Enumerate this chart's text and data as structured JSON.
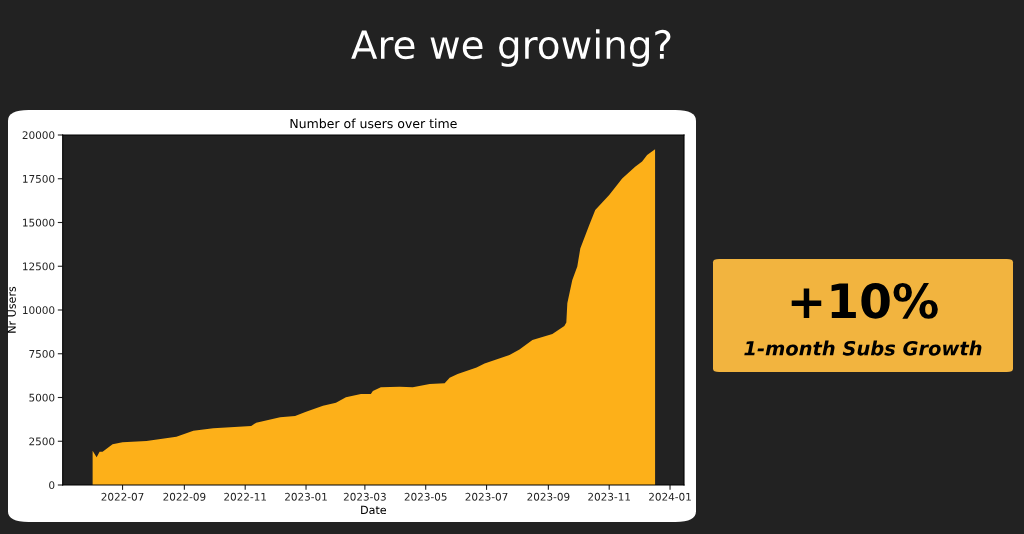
{
  "chart_data": {
    "type": "area",
    "title": "Are we growing?",
    "subtitle": "Number of users over time",
    "xlabel": "Date",
    "ylabel": "Nr Users",
    "x": [
      "2022-06-01",
      "2022-06-05",
      "2022-06-08",
      "2022-06-11",
      "2022-06-21",
      "2022-07-01",
      "2022-07-25",
      "2022-08-24",
      "2022-09-10",
      "2022-09-30",
      "2022-11-07",
      "2022-11-12",
      "2022-12-06",
      "2022-12-21",
      "2023-01-01",
      "2023-01-18",
      "2023-01-31",
      "2023-02-10",
      "2023-02-25",
      "2023-03-07",
      "2023-03-09",
      "2023-03-17",
      "2023-04-05",
      "2023-04-18",
      "2023-05-05",
      "2023-05-20",
      "2023-05-25",
      "2023-06-02",
      "2023-06-21",
      "2023-06-29",
      "2023-07-24",
      "2023-08-03",
      "2023-08-16",
      "2023-09-05",
      "2023-09-17",
      "2023-09-19",
      "2023-09-20",
      "2023-09-25",
      "2023-09-30",
      "2023-10-03",
      "2023-10-12",
      "2023-10-18",
      "2023-11-01",
      "2023-11-14",
      "2023-11-27",
      "2023-12-04",
      "2023-12-09",
      "2023-12-17"
    ],
    "series": [
      {
        "color": "#fdb019",
        "values": [
          1960,
          1580,
          1900,
          1900,
          2330,
          2440,
          2520,
          2760,
          3100,
          3240,
          3370,
          3560,
          3870,
          3940,
          4190,
          4530,
          4700,
          5010,
          5200,
          5200,
          5370,
          5580,
          5620,
          5580,
          5770,
          5810,
          6130,
          6340,
          6720,
          6950,
          7430,
          7750,
          8290,
          8630,
          9090,
          9280,
          10380,
          11710,
          12480,
          13520,
          14860,
          15710,
          16570,
          17520,
          18190,
          18480,
          18860,
          19190
        ]
      }
    ],
    "xlim": [
      "2022-05-02",
      "2024-01-15"
    ],
    "xticks": [
      "2022-07",
      "2022-09",
      "2022-11",
      "2023-01",
      "2023-03",
      "2023-05",
      "2023-07",
      "2023-09",
      "2023-11",
      "2024-01"
    ],
    "ylim": [
      0,
      20000
    ],
    "yticks": [
      0,
      2500,
      5000,
      7500,
      10000,
      12500,
      15000,
      17500,
      20000
    ],
    "grid": false,
    "annotations": [
      "+10%",
      "1-month Subs Growth"
    ]
  }
}
